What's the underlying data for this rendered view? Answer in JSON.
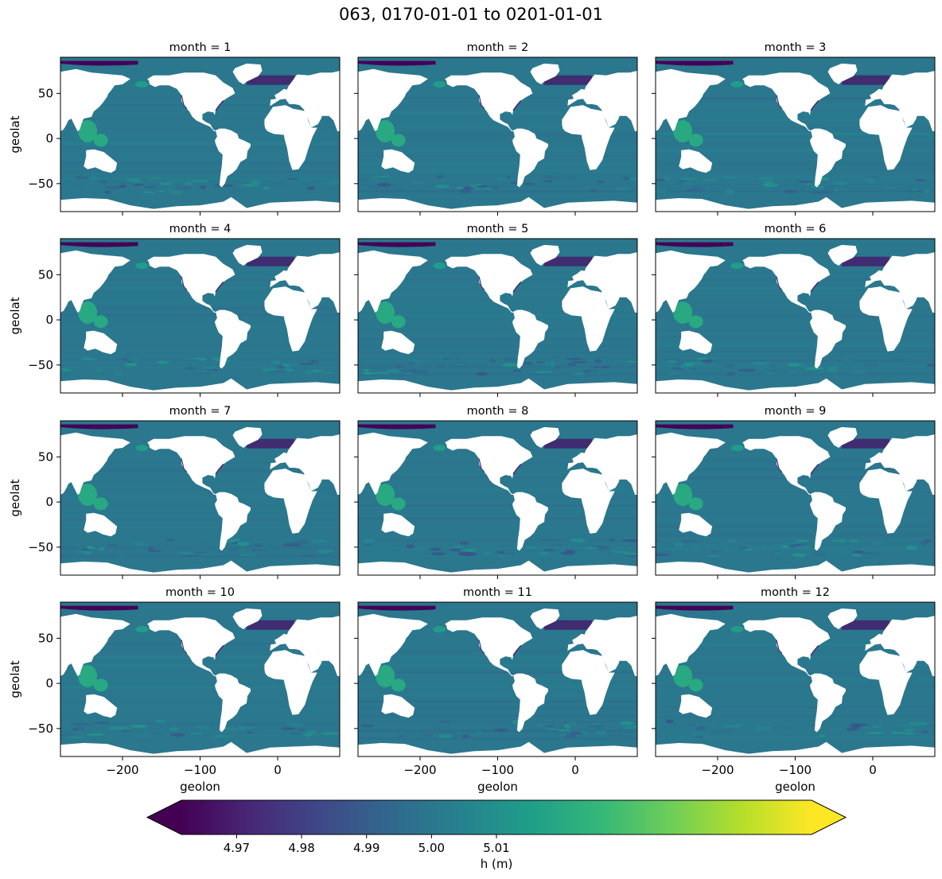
{
  "chart_data": {
    "type": "heatmap",
    "title": "063, 0170-01-01 to 0201-01-01",
    "facet_titles": [
      "month = 1",
      "month = 2",
      "month = 3",
      "month = 4",
      "month = 5",
      "month = 6",
      "month = 7",
      "month = 8",
      "month = 9",
      "month = 10",
      "month = 11",
      "month = 12"
    ],
    "xlabel": "geolon",
    "ylabel": "geolat",
    "xlim": [
      -280,
      80
    ],
    "ylim": [
      -81,
      90
    ],
    "xticks": [
      -200,
      -100,
      0
    ],
    "xtick_labels": [
      "−200",
      "−100",
      "0"
    ],
    "yticks": [
      -50,
      0,
      50
    ],
    "ytick_labels": [
      "−50",
      "0",
      "50"
    ],
    "colorbar": {
      "label": "h (m)",
      "range": [
        4.9615,
        5.0585
      ],
      "extend": "both",
      "ticks": [
        4.97,
        4.98,
        4.99,
        5.0,
        5.01
      ],
      "tick_labels": [
        "4.97",
        "4.98",
        "4.99",
        "5.00",
        "5.01"
      ],
      "colormap": "viridis",
      "colormap_colors": [
        "#440154",
        "#482878",
        "#3e4989",
        "#31688e",
        "#26828e",
        "#1f9e89",
        "#35b779",
        "#6ece58",
        "#b5de2b",
        "#fde725"
      ]
    },
    "ocean_base_value": 5.0,
    "land_color": "#ffffff",
    "grid": false
  }
}
